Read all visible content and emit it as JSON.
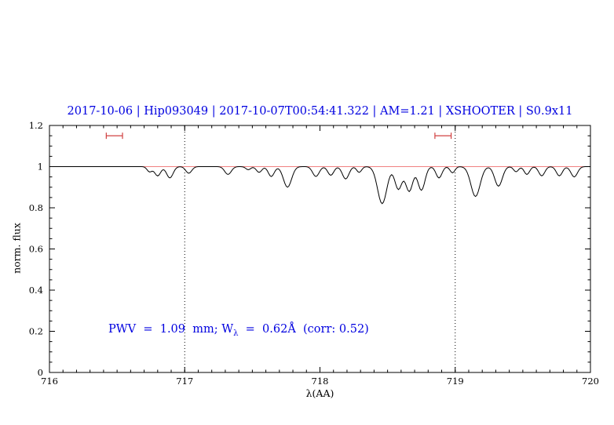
{
  "header": {
    "title": "2017-10-06 | Hip093049 | 2017-10-07T00:54:41.322 | AM=1.21 | XSHOOTER | S0.9x11"
  },
  "annotation": {
    "prefix": "PWV  =  1.09  mm; W",
    "sub": "λ",
    "suffix": "  =  0.62Å  (corr: 0.52)"
  },
  "colors": {
    "title": "#0000e0",
    "annotation": "#0000e0",
    "continuum": "#f08080",
    "marker": "#d04040",
    "spectrum": "#000000",
    "axis": "#000000"
  },
  "chart_data": {
    "type": "line",
    "title": "2017-10-06 | Hip093049 | 2017-10-07T00:54:41.322 | AM=1.21 | XSHOOTER | S0.9x11",
    "xlabel": "λ(AA)",
    "ylabel": "norm. flux",
    "xlim": [
      716,
      720
    ],
    "ylim": [
      0,
      1.2
    ],
    "xticks": [
      716,
      717,
      718,
      719,
      720
    ],
    "yticks": [
      0,
      0.2,
      0.4,
      0.6,
      0.8,
      1,
      1.2
    ],
    "x_minor_step": 0.1,
    "y_minor_step": 0.05,
    "dotted_vlines": [
      717,
      719
    ],
    "continuum_y": 1.0,
    "range_markers": [
      {
        "x_start": 716.42,
        "x_end": 716.54,
        "y": 1.15
      },
      {
        "x_start": 718.85,
        "x_end": 718.97,
        "y": 1.15
      }
    ],
    "annotation_text": "PWV = 1.09 mm; Wλ = 0.62Å (corr: 0.52)",
    "spectrum_model": {
      "baseline": 1.0,
      "sample_step": 0.01,
      "absorption_lines": [
        {
          "center": 716.74,
          "depth": 0.025,
          "sigma": 0.018
        },
        {
          "center": 716.8,
          "depth": 0.045,
          "sigma": 0.022
        },
        {
          "center": 716.89,
          "depth": 0.055,
          "sigma": 0.024
        },
        {
          "center": 717.03,
          "depth": 0.032,
          "sigma": 0.022
        },
        {
          "center": 717.32,
          "depth": 0.038,
          "sigma": 0.024
        },
        {
          "center": 717.47,
          "depth": 0.015,
          "sigma": 0.018
        },
        {
          "center": 717.55,
          "depth": 0.028,
          "sigma": 0.02
        },
        {
          "center": 717.64,
          "depth": 0.048,
          "sigma": 0.022
        },
        {
          "center": 717.76,
          "depth": 0.1,
          "sigma": 0.03
        },
        {
          "center": 717.97,
          "depth": 0.048,
          "sigma": 0.024
        },
        {
          "center": 718.08,
          "depth": 0.042,
          "sigma": 0.022
        },
        {
          "center": 718.19,
          "depth": 0.06,
          "sigma": 0.024
        },
        {
          "center": 718.29,
          "depth": 0.028,
          "sigma": 0.018
        },
        {
          "center": 718.46,
          "depth": 0.18,
          "sigma": 0.034
        },
        {
          "center": 718.58,
          "depth": 0.11,
          "sigma": 0.026
        },
        {
          "center": 718.66,
          "depth": 0.12,
          "sigma": 0.026
        },
        {
          "center": 718.75,
          "depth": 0.115,
          "sigma": 0.026
        },
        {
          "center": 718.88,
          "depth": 0.055,
          "sigma": 0.022
        },
        {
          "center": 718.98,
          "depth": 0.03,
          "sigma": 0.018
        },
        {
          "center": 719.15,
          "depth": 0.145,
          "sigma": 0.034
        },
        {
          "center": 719.32,
          "depth": 0.095,
          "sigma": 0.028
        },
        {
          "center": 719.45,
          "depth": 0.025,
          "sigma": 0.018
        },
        {
          "center": 719.53,
          "depth": 0.038,
          "sigma": 0.02
        },
        {
          "center": 719.64,
          "depth": 0.045,
          "sigma": 0.022
        },
        {
          "center": 719.77,
          "depth": 0.045,
          "sigma": 0.022
        },
        {
          "center": 719.88,
          "depth": 0.05,
          "sigma": 0.024
        }
      ]
    }
  }
}
